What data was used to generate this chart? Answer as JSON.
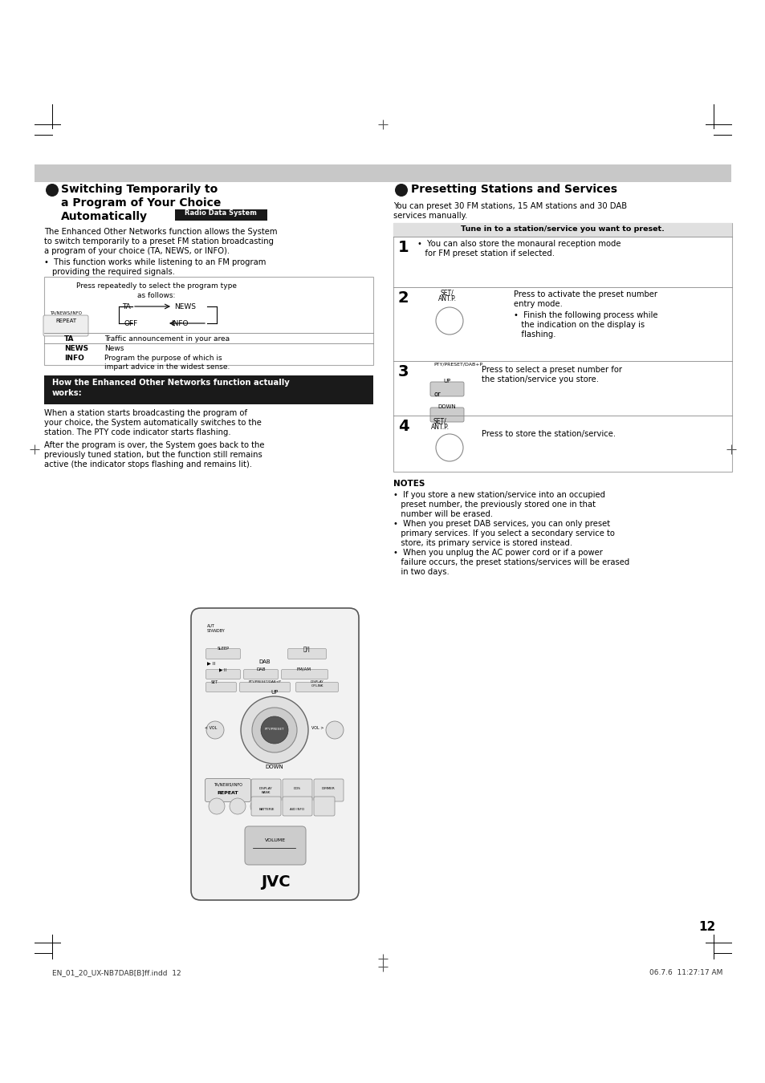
{
  "page_bg": "#ffffff",
  "page_number": "12",
  "footer_left": "EN_01_20_UX-NB7DAB[B]ff.indd  12",
  "footer_right": "06.7.6  11:27:17 AM"
}
